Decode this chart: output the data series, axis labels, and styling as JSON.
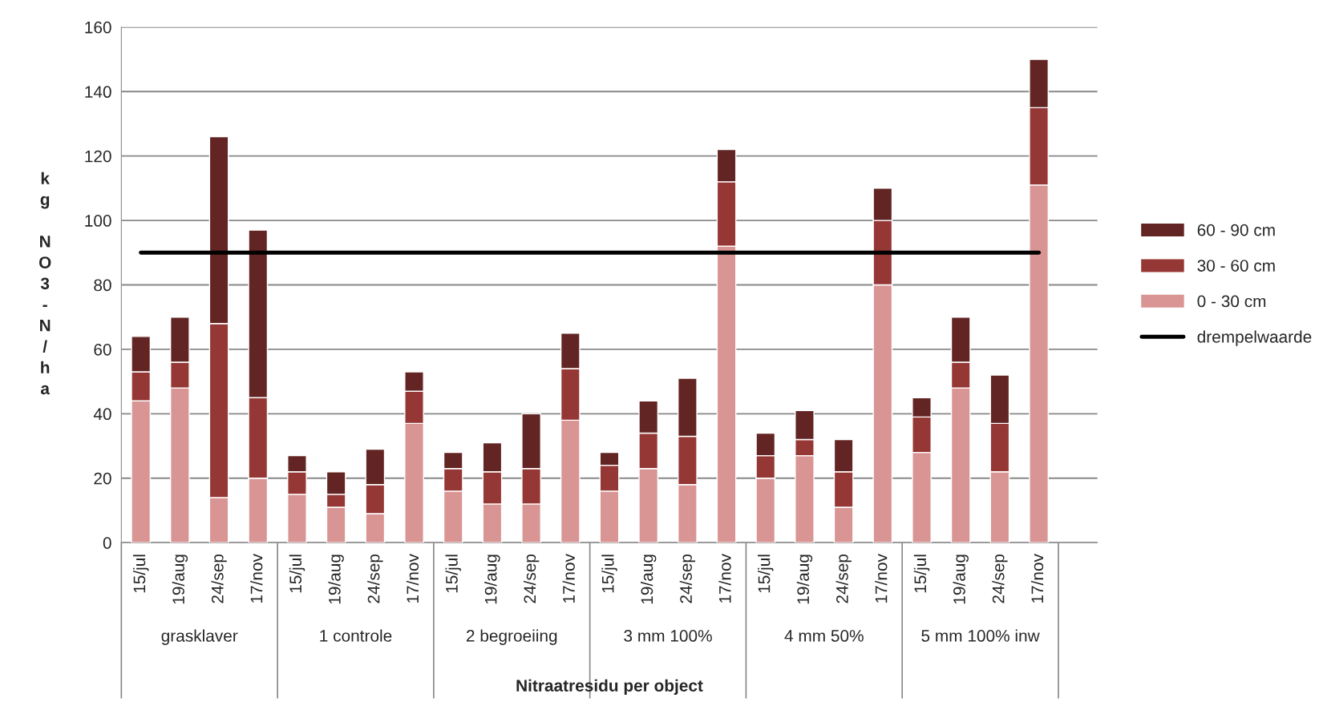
{
  "chart_data": {
    "type": "bar",
    "stacked": true,
    "xlabel": "Nitraatresidu per object",
    "ylabel": "kg NO3-N/ha",
    "categories": [
      "15/jul",
      "19/aug",
      "24/sep",
      "17/nov",
      "15/jul",
      "19/aug",
      "24/sep",
      "17/nov",
      "15/jul",
      "19/aug",
      "24/sep",
      "17/nov",
      "15/jul",
      "19/aug",
      "24/sep",
      "17/nov",
      "15/jul",
      "19/aug",
      "24/sep",
      "17/nov",
      "15/jul",
      "19/aug",
      "24/sep",
      "17/nov",
      null
    ],
    "annotations": [
      "grasklaver",
      "1 controle",
      "2 begroeiing",
      "3 mm 100%",
      "4 mm 50%",
      "5 mm 100% inw"
    ],
    "series": [
      {
        "name": "0 - 30 cm",
        "color": "#d99594",
        "values": [
          44,
          48,
          14,
          20,
          15,
          11,
          9,
          37,
          16,
          12,
          12,
          38,
          16,
          23,
          18,
          92,
          20,
          27,
          11,
          80,
          28,
          48,
          22,
          111,
          null
        ]
      },
      {
        "name": "30 - 60 cm",
        "color": "#953735",
        "values": [
          9,
          8,
          54,
          25,
          7,
          4,
          9,
          10,
          7,
          10,
          11,
          16,
          8,
          11,
          15,
          20,
          7,
          5,
          11,
          20,
          11,
          8,
          15,
          24,
          null
        ]
      },
      {
        "name": "60 - 90 cm",
        "color": "#632523",
        "values": [
          11,
          14,
          58,
          52,
          5,
          7,
          11,
          6,
          5,
          9,
          17,
          11,
          4,
          10,
          18,
          10,
          7,
          9,
          10,
          10,
          6,
          14,
          15,
          15,
          null
        ]
      }
    ],
    "ref_lines": [
      {
        "axis": "y",
        "value": 90,
        "label": "drempelwaarde",
        "color": "#000000",
        "line_style": "solid"
      }
    ],
    "ylim": [
      0,
      160
    ],
    "yticks": [
      0,
      20,
      40,
      60,
      80,
      100,
      120,
      140,
      160
    ],
    "grid": "y",
    "legend": "right"
  }
}
